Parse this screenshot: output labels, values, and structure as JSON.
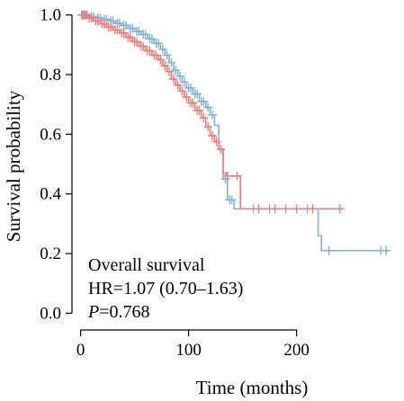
{
  "chart_data": {
    "type": "line",
    "subtype": "kaplan-meier",
    "xlabel": "Time (months)",
    "ylabel": "Survival probability",
    "xlim": [
      -8,
      292
    ],
    "ylim": [
      -0.02,
      1.02
    ],
    "x_ticks": [
      0,
      100,
      200
    ],
    "y_ticks": [
      0.0,
      0.2,
      0.4,
      0.6,
      0.8,
      1.0
    ],
    "y_tick_labels": [
      "0.0",
      "0.2",
      "0.4",
      "0.6",
      "0.8",
      "1.0"
    ],
    "grid": false,
    "legend": "none",
    "annotations": {
      "line1": "Overall survival",
      "line2": "HR=1.07 (0.70–1.63)",
      "line3_prefix": "P",
      "line3_rest": "=0.768"
    },
    "series": [
      {
        "color": "#7fb2d8",
        "steps": [
          [
            0,
            1.0
          ],
          [
            8,
            0.995
          ],
          [
            14,
            0.99
          ],
          [
            20,
            0.985
          ],
          [
            26,
            0.98
          ],
          [
            32,
            0.972
          ],
          [
            38,
            0.965
          ],
          [
            44,
            0.955
          ],
          [
            50,
            0.945
          ],
          [
            56,
            0.935
          ],
          [
            62,
            0.92
          ],
          [
            68,
            0.905
          ],
          [
            74,
            0.885
          ],
          [
            78,
            0.865
          ],
          [
            82,
            0.84
          ],
          [
            86,
            0.815
          ],
          [
            90,
            0.795
          ],
          [
            94,
            0.775
          ],
          [
            98,
            0.755
          ],
          [
            104,
            0.735
          ],
          [
            110,
            0.71
          ],
          [
            116,
            0.69
          ],
          [
            120,
            0.665
          ],
          [
            124,
            0.63
          ],
          [
            128,
            0.55
          ],
          [
            132,
            0.45
          ],
          [
            136,
            0.38
          ],
          [
            142,
            0.35
          ],
          [
            215,
            0.35
          ],
          [
            220,
            0.26
          ],
          [
            223,
            0.21
          ],
          [
            286,
            0.21
          ]
        ],
        "censor": [
          [
            2,
            1.0
          ],
          [
            4,
            1.0
          ],
          [
            6,
            1.0
          ],
          [
            10,
            0.995
          ],
          [
            12,
            0.995
          ],
          [
            16,
            0.99
          ],
          [
            18,
            0.99
          ],
          [
            22,
            0.985
          ],
          [
            24,
            0.985
          ],
          [
            28,
            0.98
          ],
          [
            30,
            0.98
          ],
          [
            34,
            0.972
          ],
          [
            36,
            0.972
          ],
          [
            40,
            0.965
          ],
          [
            42,
            0.965
          ],
          [
            46,
            0.955
          ],
          [
            48,
            0.955
          ],
          [
            52,
            0.945
          ],
          [
            54,
            0.945
          ],
          [
            58,
            0.935
          ],
          [
            60,
            0.935
          ],
          [
            64,
            0.92
          ],
          [
            66,
            0.92
          ],
          [
            70,
            0.905
          ],
          [
            72,
            0.905
          ],
          [
            76,
            0.885
          ],
          [
            80,
            0.865
          ],
          [
            84,
            0.84
          ],
          [
            88,
            0.815
          ],
          [
            92,
            0.795
          ],
          [
            96,
            0.775
          ],
          [
            100,
            0.755
          ],
          [
            102,
            0.755
          ],
          [
            106,
            0.735
          ],
          [
            108,
            0.735
          ],
          [
            112,
            0.71
          ],
          [
            114,
            0.71
          ],
          [
            118,
            0.69
          ],
          [
            122,
            0.665
          ],
          [
            134,
            0.45
          ],
          [
            138,
            0.38
          ],
          [
            140,
            0.38
          ],
          [
            160,
            0.35
          ],
          [
            175,
            0.35
          ],
          [
            190,
            0.35
          ],
          [
            210,
            0.35
          ],
          [
            230,
            0.21
          ],
          [
            278,
            0.21
          ],
          [
            283,
            0.21
          ]
        ]
      },
      {
        "color": "#ef7b75",
        "steps": [
          [
            0,
            1.0
          ],
          [
            6,
            0.99
          ],
          [
            12,
            0.98
          ],
          [
            18,
            0.97
          ],
          [
            24,
            0.96
          ],
          [
            30,
            0.95
          ],
          [
            36,
            0.94
          ],
          [
            42,
            0.925
          ],
          [
            48,
            0.91
          ],
          [
            54,
            0.895
          ],
          [
            60,
            0.88
          ],
          [
            66,
            0.865
          ],
          [
            72,
            0.85
          ],
          [
            76,
            0.83
          ],
          [
            80,
            0.81
          ],
          [
            84,
            0.785
          ],
          [
            88,
            0.765
          ],
          [
            92,
            0.745
          ],
          [
            96,
            0.725
          ],
          [
            100,
            0.705
          ],
          [
            106,
            0.68
          ],
          [
            112,
            0.655
          ],
          [
            116,
            0.625
          ],
          [
            120,
            0.595
          ],
          [
            124,
            0.575
          ],
          [
            128,
            0.55
          ],
          [
            132,
            0.47
          ],
          [
            135,
            0.46
          ],
          [
            138,
            0.46
          ],
          [
            148,
            0.35
          ],
          [
            241,
            0.35
          ]
        ],
        "censor": [
          [
            1,
            1.0
          ],
          [
            3,
            1.0
          ],
          [
            5,
            1.0
          ],
          [
            8,
            0.99
          ],
          [
            10,
            0.99
          ],
          [
            14,
            0.98
          ],
          [
            16,
            0.98
          ],
          [
            20,
            0.97
          ],
          [
            22,
            0.97
          ],
          [
            26,
            0.96
          ],
          [
            28,
            0.96
          ],
          [
            32,
            0.95
          ],
          [
            34,
            0.95
          ],
          [
            38,
            0.94
          ],
          [
            40,
            0.94
          ],
          [
            44,
            0.925
          ],
          [
            46,
            0.925
          ],
          [
            50,
            0.91
          ],
          [
            52,
            0.91
          ],
          [
            56,
            0.895
          ],
          [
            58,
            0.895
          ],
          [
            62,
            0.88
          ],
          [
            64,
            0.88
          ],
          [
            68,
            0.865
          ],
          [
            70,
            0.865
          ],
          [
            74,
            0.85
          ],
          [
            78,
            0.83
          ],
          [
            82,
            0.81
          ],
          [
            86,
            0.785
          ],
          [
            90,
            0.765
          ],
          [
            94,
            0.745
          ],
          [
            98,
            0.725
          ],
          [
            102,
            0.705
          ],
          [
            104,
            0.705
          ],
          [
            108,
            0.68
          ],
          [
            110,
            0.68
          ],
          [
            114,
            0.655
          ],
          [
            118,
            0.625
          ],
          [
            122,
            0.595
          ],
          [
            126,
            0.575
          ],
          [
            130,
            0.55
          ],
          [
            136,
            0.46
          ],
          [
            145,
            0.46
          ],
          [
            165,
            0.35
          ],
          [
            180,
            0.35
          ],
          [
            200,
            0.35
          ],
          [
            215,
            0.35
          ],
          [
            240,
            0.35
          ]
        ]
      }
    ]
  }
}
